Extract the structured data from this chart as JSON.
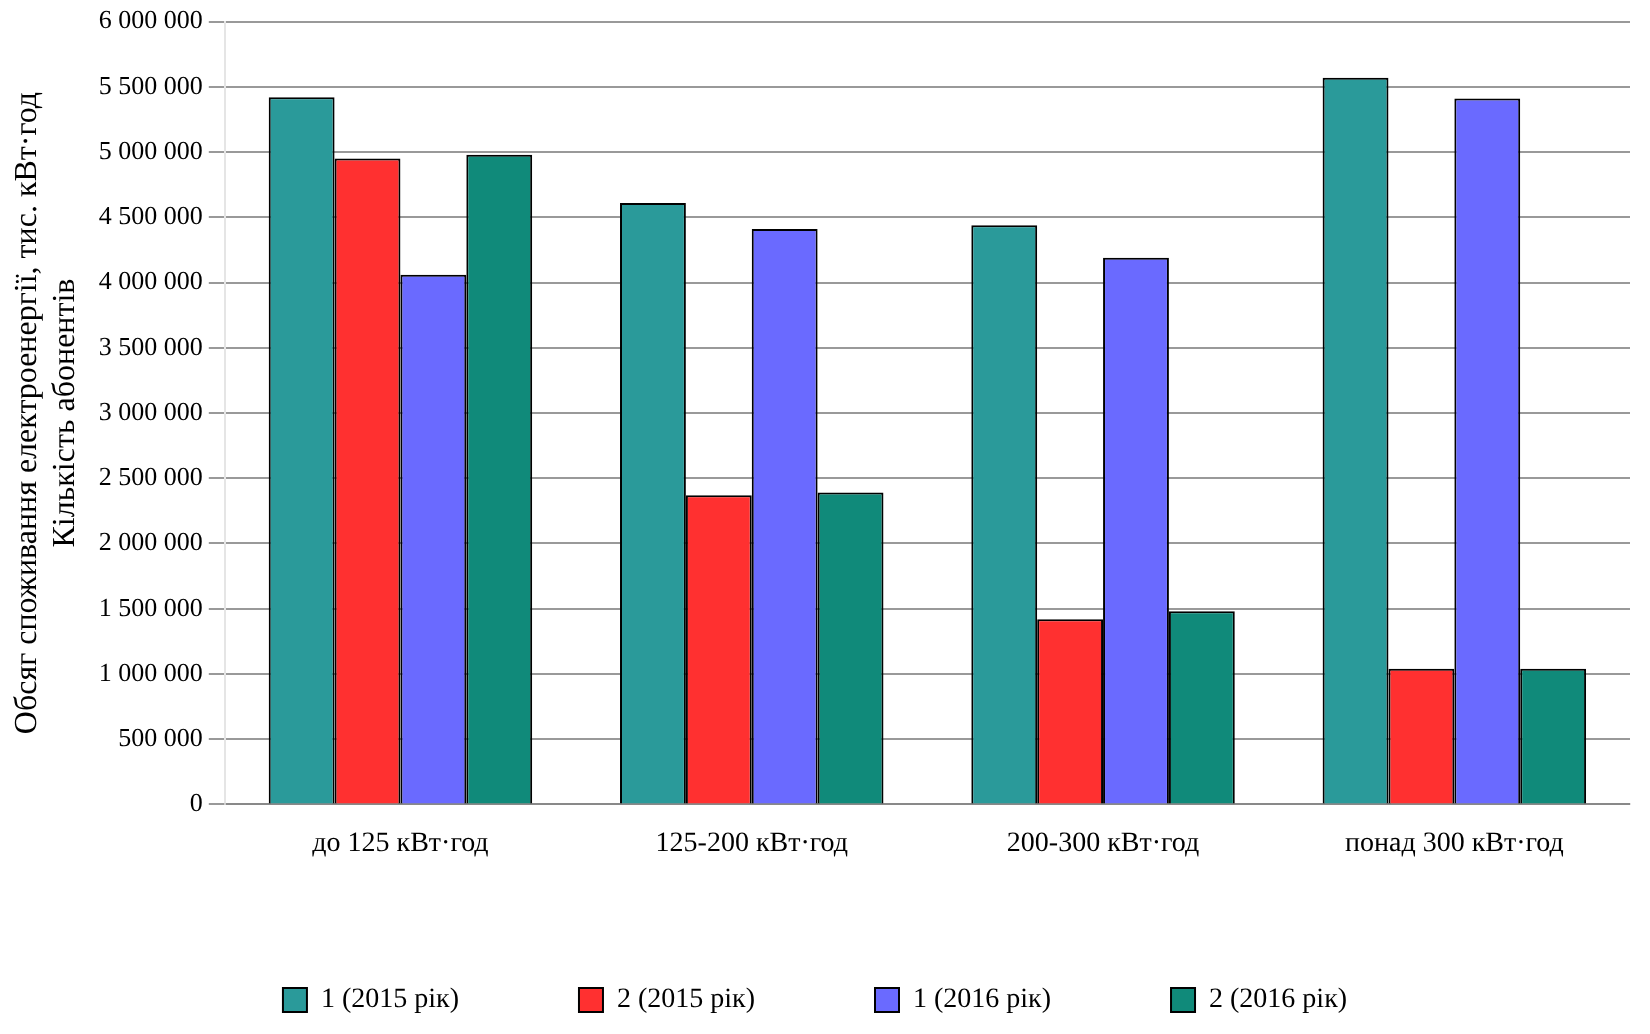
{
  "chart_data": {
    "type": "bar",
    "ylabel": "Обсяг споживання електроенергії, тис. кВт·год\nКількість абонентів",
    "categories": [
      "до 125 кВт·год",
      "125-200 кВт·год",
      "200-300 кВт·год",
      "понад 300 кВт·год"
    ],
    "series": [
      {
        "name": "1 (2015 рік)",
        "color": "#2a9a9a",
        "values": [
          5420000,
          4610000,
          4440000,
          5570000
        ]
      },
      {
        "name": "2 (2015 рік)",
        "color": "#ff3030",
        "values": [
          4950000,
          2370000,
          1420000,
          1040000
        ]
      },
      {
        "name": "1 (2016 рік)",
        "color": "#6a6aff",
        "values": [
          4060000,
          4410000,
          4190000,
          5410000
        ]
      },
      {
        "name": "2 (2016 рік)",
        "color": "#108a7a",
        "values": [
          4980000,
          2390000,
          1480000,
          1040000
        ]
      }
    ],
    "ylim": [
      0,
      6000000
    ],
    "yticks": [
      0,
      500000,
      1000000,
      1500000,
      2000000,
      2500000,
      3000000,
      3500000,
      4000000,
      4500000,
      5000000,
      5500000,
      6000000
    ],
    "grid": "y",
    "legend": "bottom"
  }
}
